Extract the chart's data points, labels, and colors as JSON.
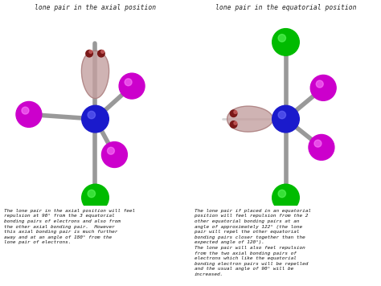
{
  "title_left": "lone pair in the axial position",
  "title_right": "lone pair in the equatorial position",
  "text_left": "The lone pair in the axial position will feel\nrepulsion at 90° from the 3 equatorial\nbonding pairs of electrons and also from\nthe other axial bonding pair.  However\nthis axial bonding pair is much further\naway and at an angle of 180° from the\nlone pair of electrons.",
  "text_right": "The lone pair if placed in an equatorial\nposition will feel repulsion from the 2\nother equatorial bonding pairs at an\nangle of approximately 122° (the lone\npair will repel the other equatorial\nbonding pairs closer together than the\nexpected angle of 120°).\nThe lone pair will also feel repulsion\nfrom the two axial bonding pairs of\nelectrons which like the equatorial\nbonding electron pairs will be repelled\nand the usual angle of 90° will be\nincreased.",
  "bg_color": "#ffffff",
  "center_color": "#1a1acc",
  "magenta_color": "#cc00cc",
  "green_color": "#00bb00",
  "bond_color": "#999999",
  "lone_pair_fill": "#c4a0a0",
  "lone_pair_edge": "#a07070",
  "lone_pair_dot": "#7a1818"
}
